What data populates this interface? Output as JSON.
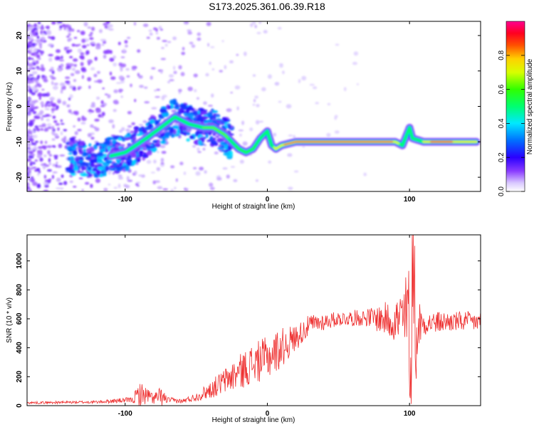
{
  "title": "S173.2025.361.06.39.R18",
  "colors": {
    "snr_line": "#ee2e2e",
    "spectrogram_cmap": [
      "#ffffff",
      "#e7d4ff",
      "#b989ff",
      "#7a2cff",
      "#3a00ff",
      "#0060ff",
      "#00e0ff",
      "#00ff60",
      "#c8ff00",
      "#ffe000",
      "#ff6000",
      "#ff0030",
      "#ff00a0"
    ]
  },
  "chart_data": [
    {
      "type": "heatmap",
      "name": "spectrogram",
      "xlabel": "Height of straight line (km)",
      "ylabel": "Frequency (Hz)",
      "xlim": [
        -169,
        150
      ],
      "ylim": [
        -24,
        24
      ],
      "x_ticks": [
        -100,
        0,
        100
      ],
      "x_tick_labels": [
        "-100",
        "0",
        "100"
      ],
      "y_ticks": [
        -20,
        -10,
        0,
        10,
        20
      ],
      "y_tick_labels": [
        "-20",
        "-10",
        "0",
        "10",
        "20"
      ],
      "ridge": {
        "description_values": "dominant frequency track (Hz) vs height (km)",
        "x": [
          -169,
          -140,
          -120,
          -100,
          -85,
          -75,
          -65,
          -55,
          -45,
          -38,
          -30,
          -20,
          -15,
          -10,
          -5,
          0,
          3,
          6,
          10,
          20,
          40,
          60,
          80,
          90,
          95,
          98,
          100,
          102,
          110,
          120,
          140,
          150
        ],
        "y": [
          -13,
          -14,
          -15,
          -13,
          -9,
          -6,
          -3,
          -5,
          -6,
          -6,
          -8,
          -12,
          -13,
          -12,
          -9,
          -7,
          -11,
          -12,
          -11,
          -10,
          -10,
          -10,
          -10,
          -10,
          -11,
          -8,
          -6,
          -9,
          -10,
          -10,
          -10,
          -10
        ]
      },
      "colorbar": {
        "label": "Normalized spectral amplitude",
        "range": [
          0,
          1
        ],
        "ticks": [
          0.0,
          0.2,
          0.4,
          0.6,
          0.8
        ],
        "tick_labels": [
          "0.0",
          "0.2",
          "0.4",
          "0.6",
          "0.8"
        ]
      }
    },
    {
      "type": "line",
      "name": "snr",
      "xlabel": "Height of straight line (km)",
      "ylabel": "SNR (10 * v/v)",
      "xlim": [
        -169,
        150
      ],
      "ylim": [
        0,
        1180
      ],
      "x_ticks": [
        -100,
        0,
        100
      ],
      "x_tick_labels": [
        "-100",
        "0",
        "100"
      ],
      "y_ticks": [
        0,
        200,
        400,
        600,
        800,
        1000
      ],
      "y_tick_labels": [
        "0",
        "200",
        "400",
        "600",
        "800",
        "1000"
      ],
      "envelope": {
        "description_values": "approximate mean SNR and fluctuation amplitude vs height (km)",
        "x": [
          -169,
          -120,
          -95,
          -90,
          -85,
          -80,
          -75,
          -70,
          -60,
          -50,
          -40,
          -30,
          -20,
          -10,
          0,
          10,
          20,
          30,
          50,
          70,
          90,
          95,
          100,
          103,
          105,
          110,
          130,
          150
        ],
        "mean": [
          20,
          25,
          40,
          80,
          70,
          50,
          60,
          40,
          30,
          60,
          110,
          170,
          230,
          290,
          330,
          400,
          470,
          560,
          600,
          610,
          590,
          590,
          600,
          560,
          560,
          570,
          580,
          580
        ],
        "amp": [
          8,
          10,
          20,
          90,
          60,
          40,
          70,
          20,
          15,
          30,
          60,
          90,
          120,
          140,
          150,
          140,
          90,
          70,
          50,
          60,
          150,
          250,
          400,
          500,
          250,
          80,
          70,
          70
        ]
      }
    }
  ]
}
